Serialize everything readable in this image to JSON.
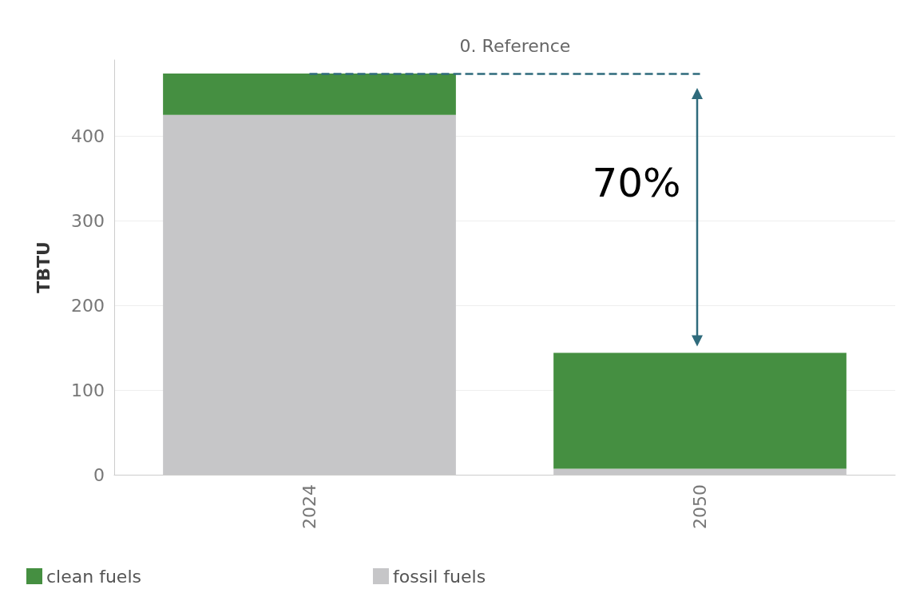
{
  "chart_data": {
    "type": "bar",
    "title": "0. Reference",
    "ylabel": "TBTU",
    "categories": [
      "2024",
      "2050"
    ],
    "stacked": true,
    "series": [
      {
        "name": "fossil fuels",
        "color": "#c6c6c8",
        "values": [
          425,
          7
        ]
      },
      {
        "name": "clean fuels",
        "color": "#458f41",
        "values": [
          49,
          137
        ]
      }
    ],
    "ylim": [
      0,
      490
    ],
    "yticks": [
      0,
      100,
      200,
      300,
      400
    ],
    "grid": "y",
    "legend": "bottom left",
    "ref_lines": [
      {
        "axis": "y",
        "value": 474,
        "color": "#2f6b7c",
        "line_style": "dashed"
      }
    ],
    "annotations": [
      "70%"
    ]
  }
}
